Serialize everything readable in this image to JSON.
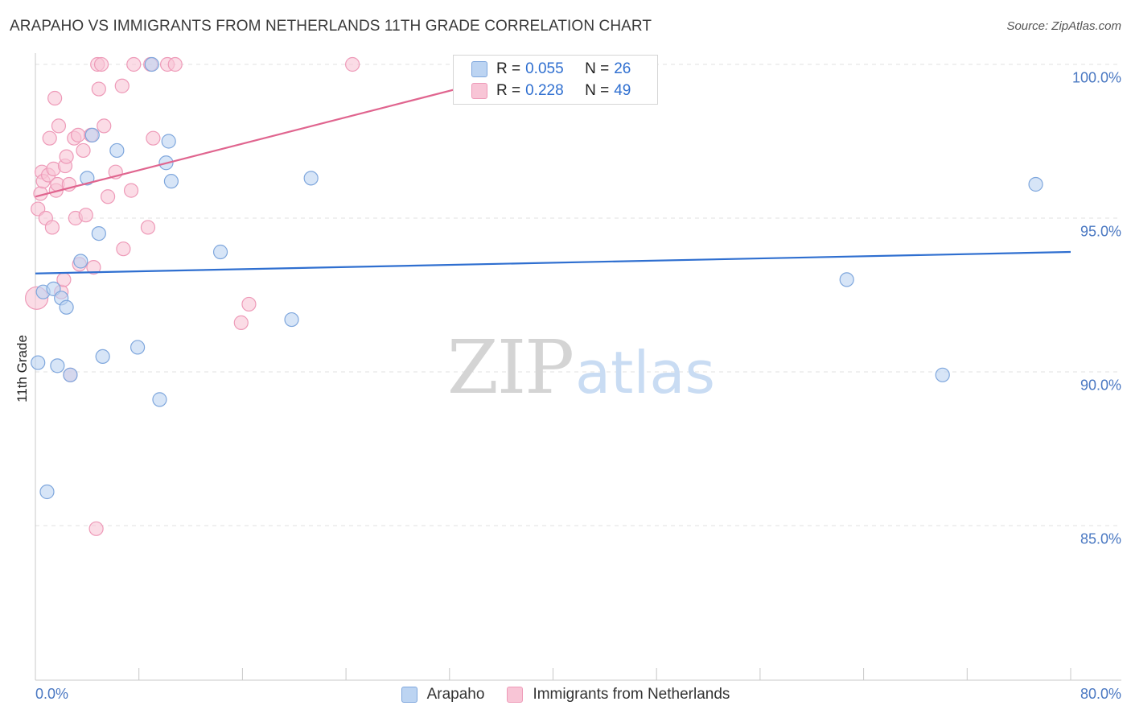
{
  "header": {
    "title": "ARAPAHO VS IMMIGRANTS FROM NETHERLANDS 11TH GRADE CORRELATION CHART",
    "source": "Source: ZipAtlas.com"
  },
  "watermark": {
    "zip": "ZIP",
    "atlas": "atlas"
  },
  "legend_top": {
    "rows": [
      {
        "r_label": "R = ",
        "r_value": "0.055",
        "n_label": "N = ",
        "n_value": "26"
      },
      {
        "r_label": "R = ",
        "r_value": "0.228",
        "n_label": "N = ",
        "n_value": "49"
      }
    ]
  },
  "chart_data": {
    "type": "scatter",
    "title": "ARAPAHO VS IMMIGRANTS FROM NETHERLANDS 11TH GRADE CORRELATION CHART",
    "xlabel": "",
    "ylabel": "11th Grade",
    "xlim": [
      0,
      80
    ],
    "ylim": [
      80.5,
      101.2
    ],
    "x_tick_labels": [
      "0.0%",
      "80.0%"
    ],
    "y_ticks": [
      85,
      90,
      95,
      100
    ],
    "y_tick_labels": [
      "85.0%",
      "90.0%",
      "95.0%",
      "100.0%"
    ],
    "grid": true,
    "legend": "bottom-center",
    "colors": {
      "arapaho_fill": "#bcd4f2",
      "arapaho_stroke": "#7fa7dd",
      "arapaho_line": "#2f6fd0",
      "neth_fill": "#f8c5d6",
      "neth_stroke": "#ee9ab8",
      "neth_line": "#e0658f",
      "grid": "#e2e2e2",
      "axis": "#c8c8c8",
      "tick_text": "#4a78c2"
    },
    "series": [
      {
        "name": "Arapaho",
        "r": 0.055,
        "n": 26,
        "trend": {
          "x": [
            0,
            80
          ],
          "y": [
            93.2,
            93.9
          ]
        },
        "points": [
          {
            "x": 0.2,
            "y": 90.3
          },
          {
            "x": 0.6,
            "y": 92.6
          },
          {
            "x": 0.9,
            "y": 86.1
          },
          {
            "x": 1.4,
            "y": 92.7
          },
          {
            "x": 1.7,
            "y": 90.2
          },
          {
            "x": 2.0,
            "y": 92.4
          },
          {
            "x": 2.4,
            "y": 92.1
          },
          {
            "x": 2.7,
            "y": 89.9
          },
          {
            "x": 3.5,
            "y": 93.6
          },
          {
            "x": 4.0,
            "y": 96.3
          },
          {
            "x": 4.4,
            "y": 97.7
          },
          {
            "x": 4.9,
            "y": 94.5
          },
          {
            "x": 5.2,
            "y": 90.5
          },
          {
            "x": 6.3,
            "y": 97.2
          },
          {
            "x": 7.9,
            "y": 90.8
          },
          {
            "x": 9.0,
            "y": 100.0
          },
          {
            "x": 9.6,
            "y": 89.1
          },
          {
            "x": 10.1,
            "y": 96.8
          },
          {
            "x": 10.3,
            "y": 97.5
          },
          {
            "x": 10.5,
            "y": 96.2
          },
          {
            "x": 14.3,
            "y": 93.9
          },
          {
            "x": 19.8,
            "y": 91.7
          },
          {
            "x": 21.3,
            "y": 96.3
          },
          {
            "x": 62.7,
            "y": 93.0
          },
          {
            "x": 70.1,
            "y": 89.9
          },
          {
            "x": 77.3,
            "y": 96.1
          }
        ]
      },
      {
        "name": "Immigrants from Netherlands",
        "r": 0.228,
        "n": 49,
        "trend": {
          "x": [
            0,
            40
          ],
          "y": [
            95.7,
            100.0
          ]
        },
        "points": [
          {
            "x": 0.1,
            "y": 92.4,
            "big": true
          },
          {
            "x": 0.2,
            "y": 95.3
          },
          {
            "x": 0.4,
            "y": 95.8
          },
          {
            "x": 0.5,
            "y": 96.5
          },
          {
            "x": 0.6,
            "y": 96.2
          },
          {
            "x": 0.8,
            "y": 95.0
          },
          {
            "x": 1.0,
            "y": 96.4
          },
          {
            "x": 1.1,
            "y": 97.6
          },
          {
            "x": 1.3,
            "y": 94.7
          },
          {
            "x": 1.4,
            "y": 96.6
          },
          {
            "x": 1.5,
            "y": 98.9
          },
          {
            "x": 1.6,
            "y": 95.9
          },
          {
            "x": 1.7,
            "y": 96.1
          },
          {
            "x": 1.8,
            "y": 98.0
          },
          {
            "x": 2.0,
            "y": 92.6
          },
          {
            "x": 2.2,
            "y": 93.0
          },
          {
            "x": 2.3,
            "y": 96.7
          },
          {
            "x": 2.4,
            "y": 97.0
          },
          {
            "x": 2.6,
            "y": 96.1
          },
          {
            "x": 2.7,
            "y": 89.9
          },
          {
            "x": 3.0,
            "y": 97.6
          },
          {
            "x": 3.1,
            "y": 95.0
          },
          {
            "x": 3.3,
            "y": 97.7
          },
          {
            "x": 3.4,
            "y": 93.5
          },
          {
            "x": 3.7,
            "y": 97.2
          },
          {
            "x": 3.9,
            "y": 95.1
          },
          {
            "x": 4.3,
            "y": 97.7
          },
          {
            "x": 4.5,
            "y": 93.4
          },
          {
            "x": 4.7,
            "y": 84.9
          },
          {
            "x": 4.8,
            "y": 100.0
          },
          {
            "x": 4.9,
            "y": 99.2
          },
          {
            "x": 5.1,
            "y": 100.0
          },
          {
            "x": 5.3,
            "y": 98.0
          },
          {
            "x": 5.6,
            "y": 95.7
          },
          {
            "x": 6.2,
            "y": 96.5
          },
          {
            "x": 6.8,
            "y": 94.0
          },
          {
            "x": 6.7,
            "y": 99.3
          },
          {
            "x": 7.4,
            "y": 95.9
          },
          {
            "x": 7.6,
            "y": 100.0
          },
          {
            "x": 8.7,
            "y": 94.7
          },
          {
            "x": 8.9,
            "y": 100.0
          },
          {
            "x": 9.1,
            "y": 97.6
          },
          {
            "x": 10.2,
            "y": 100.0
          },
          {
            "x": 10.8,
            "y": 100.0
          },
          {
            "x": 15.9,
            "y": 91.6
          },
          {
            "x": 16.5,
            "y": 92.2
          },
          {
            "x": 24.5,
            "y": 100.0
          },
          {
            "x": 33.0,
            "y": 100.0
          },
          {
            "x": 33.5,
            "y": 100.0
          }
        ]
      }
    ]
  }
}
